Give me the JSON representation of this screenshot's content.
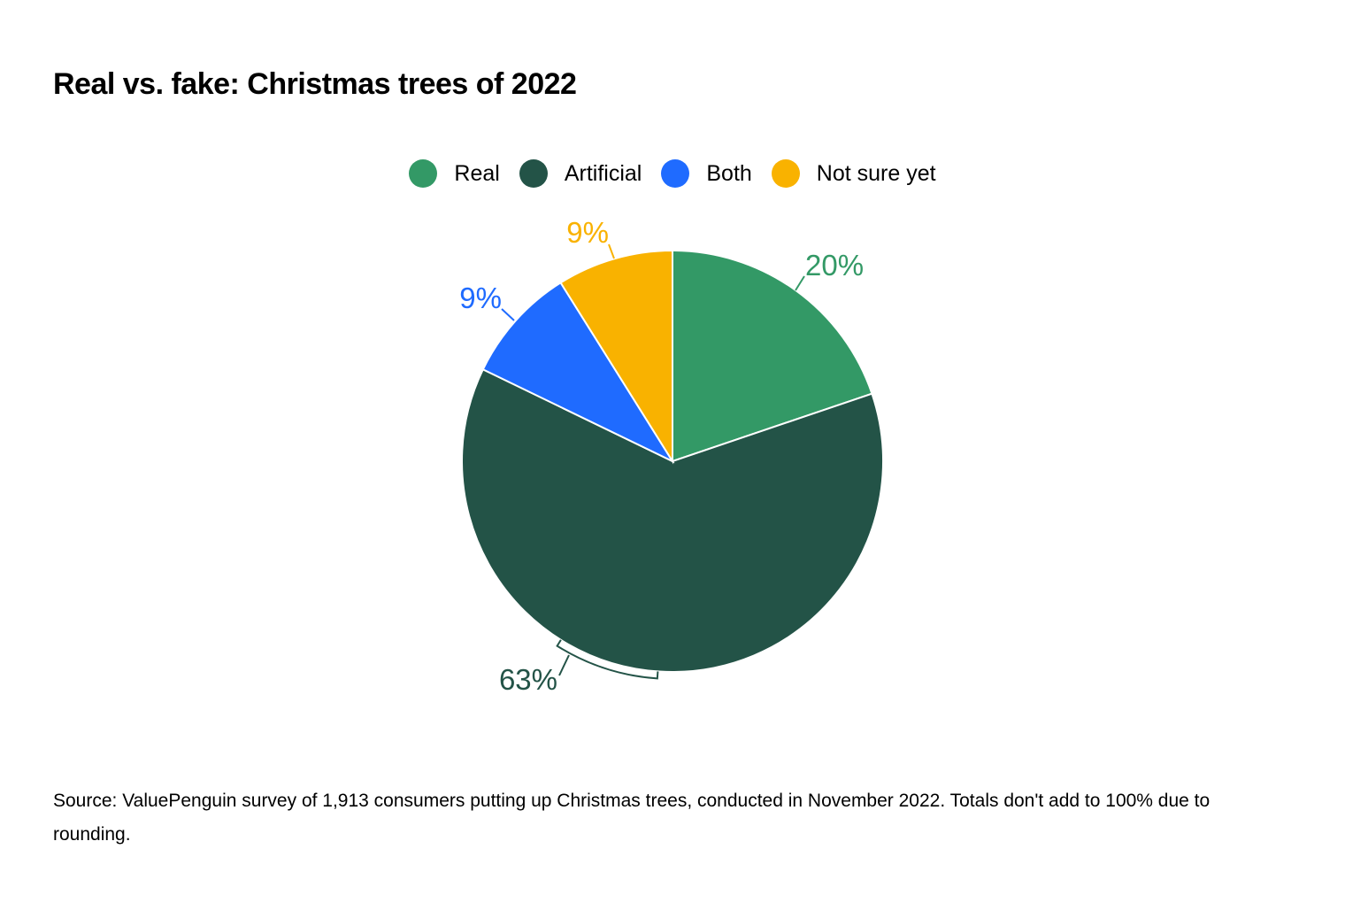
{
  "chart_data": {
    "type": "pie",
    "title": "Real vs. fake: Christmas trees of 2022",
    "slices": [
      {
        "name": "Real",
        "value": 20,
        "label": "20%",
        "color": "#339966"
      },
      {
        "name": "Artificial",
        "value": 63,
        "label": "63%",
        "color": "#235347"
      },
      {
        "name": "Both",
        "value": 9,
        "label": "9%",
        "color": "#1F6BFF"
      },
      {
        "name": "Not sure yet",
        "value": 9,
        "label": "9%",
        "color": "#F9B200"
      }
    ],
    "legend_position": "top-center",
    "source": "Source: ValuePenguin survey of 1,913 consumers putting up Christmas trees, conducted in November 2022. Totals don't add to 100% due to rounding."
  }
}
